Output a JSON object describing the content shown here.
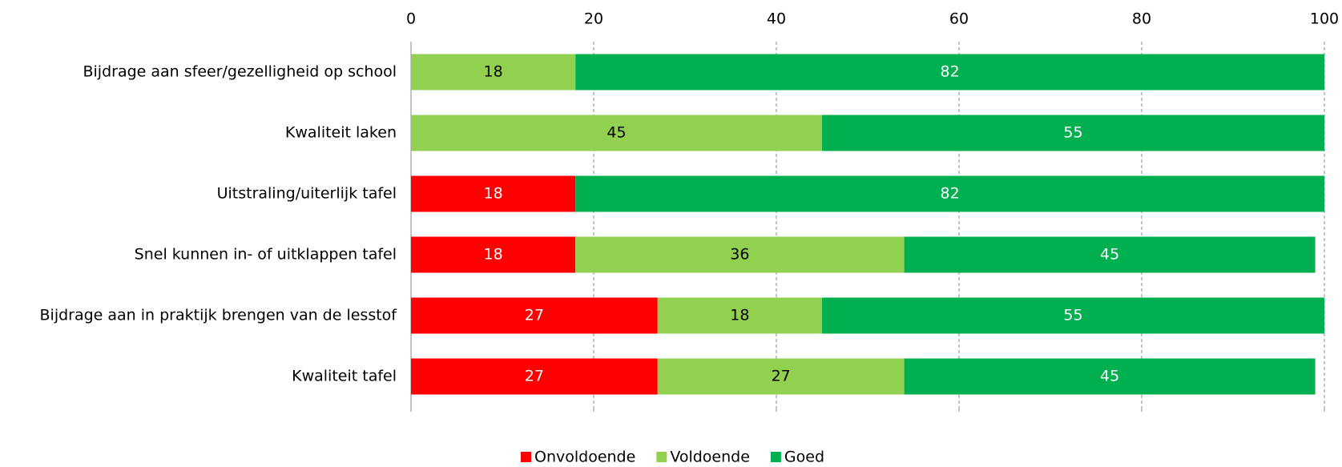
{
  "chart_data": {
    "type": "stacked_bar_horizontal",
    "categories": [
      "Bijdrage aan sfeer/gezelligheid op school",
      "Kwaliteit laken",
      "Uitstraling/uiterlijk tafel",
      "Snel kunnen in- of uitklappen tafel",
      "Bijdrage aan in praktijk brengen van de lesstof",
      "Kwaliteit tafel"
    ],
    "series": [
      {
        "name": "Onvoldoende",
        "color": "#ff0000",
        "label_color": "#ffffff",
        "values": [
          null,
          null,
          18,
          18,
          27,
          27
        ]
      },
      {
        "name": "Voldoende",
        "color": "#92d050",
        "label_color": "#000000",
        "values": [
          18,
          45,
          null,
          36,
          18,
          27
        ]
      },
      {
        "name": "Goed",
        "color": "#00b050",
        "label_color": "#ffffff",
        "values": [
          82,
          55,
          82,
          45,
          55,
          45
        ]
      }
    ],
    "xlim": [
      0,
      100
    ],
    "xticks": [
      0,
      20,
      40,
      60,
      80,
      100
    ],
    "grid": true,
    "legend": "bottom"
  }
}
